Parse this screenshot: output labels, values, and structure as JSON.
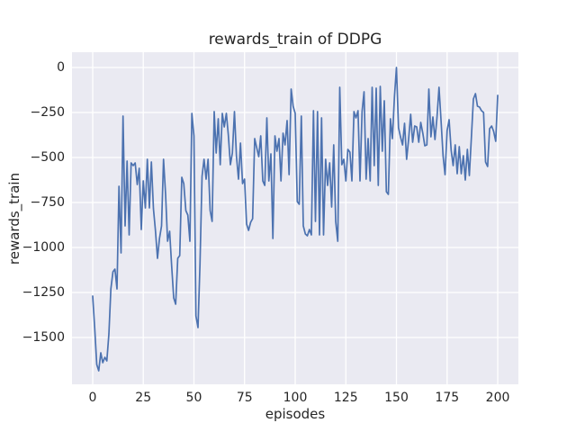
{
  "figure": {
    "title": "rewards_train of DDPG",
    "xlabel": "episodes",
    "ylabel": "rewards_train"
  },
  "axes": {
    "x_tick_labels": [
      "0",
      "25",
      "50",
      "75",
      "100",
      "125",
      "150",
      "175",
      "200"
    ],
    "y_tick_labels": [
      "0",
      "−250",
      "−500",
      "−750",
      "−1000",
      "−1250",
      "−1500"
    ]
  },
  "colors": {
    "figure_background": "#ffffff",
    "axes_background": "#eaeaf2",
    "grid": "#ffffff",
    "line": "#4c72b0",
    "text": "#262626"
  },
  "chart_data": {
    "type": "line",
    "title": "rewards_train of DDPG",
    "xlabel": "episodes",
    "ylabel": "rewards_train",
    "legend": null,
    "grid": true,
    "x_ticks": [
      0,
      25,
      50,
      75,
      100,
      125,
      150,
      175,
      200
    ],
    "y_ticks": [
      0,
      -250,
      -500,
      -750,
      -1000,
      -1250,
      -1500
    ],
    "xlim": [
      -10.2,
      210.2
    ],
    "ylim": [
      -1760,
      85
    ],
    "line_color": "#4c72b0",
    "x": [
      0,
      1,
      2,
      3,
      4,
      5,
      6,
      7,
      8,
      9,
      10,
      11,
      12,
      13,
      14,
      15,
      16,
      17,
      18,
      19,
      20,
      21,
      22,
      23,
      24,
      25,
      26,
      27,
      28,
      29,
      30,
      31,
      32,
      33,
      34,
      35,
      36,
      37,
      38,
      39,
      40,
      41,
      42,
      43,
      44,
      45,
      46,
      47,
      48,
      49,
      50,
      51,
      52,
      53,
      54,
      55,
      56,
      57,
      58,
      59,
      60,
      61,
      62,
      63,
      64,
      65,
      66,
      67,
      68,
      69,
      70,
      71,
      72,
      73,
      74,
      75,
      76,
      77,
      78,
      79,
      80,
      81,
      82,
      83,
      84,
      85,
      86,
      87,
      88,
      89,
      90,
      91,
      92,
      93,
      94,
      95,
      96,
      97,
      98,
      99,
      100,
      101,
      102,
      103,
      104,
      105,
      106,
      107,
      108,
      109,
      110,
      111,
      112,
      113,
      114,
      115,
      116,
      117,
      118,
      119,
      120,
      121,
      122,
      123,
      124,
      125,
      126,
      127,
      128,
      129,
      130,
      131,
      132,
      133,
      134,
      135,
      136,
      137,
      138,
      139,
      140,
      141,
      142,
      143,
      144,
      145,
      146,
      147,
      148,
      149,
      150,
      151,
      152,
      153,
      154,
      155,
      156,
      157,
      158,
      159,
      160,
      161,
      162,
      163,
      164,
      165,
      166,
      167,
      168,
      169,
      170,
      171,
      172,
      173,
      174,
      175,
      176,
      177,
      178,
      179,
      180,
      181,
      182,
      183,
      184,
      185,
      186,
      187,
      188,
      189,
      190,
      191,
      192,
      193,
      194,
      195,
      196,
      197,
      198,
      199,
      200
    ],
    "y": [
      -1270,
      -1445,
      -1650,
      -1685,
      -1585,
      -1640,
      -1610,
      -1630,
      -1480,
      -1230,
      -1135,
      -1120,
      -1230,
      -660,
      -1030,
      -270,
      -880,
      -520,
      -930,
      -530,
      -545,
      -530,
      -650,
      -560,
      -900,
      -630,
      -780,
      -510,
      -780,
      -525,
      -785,
      -905,
      -1060,
      -950,
      -880,
      -510,
      -705,
      -965,
      -910,
      -1100,
      -1280,
      -1315,
      -1060,
      -1045,
      -610,
      -645,
      -795,
      -820,
      -965,
      -255,
      -380,
      -1380,
      -1445,
      -1095,
      -605,
      -510,
      -620,
      -510,
      -795,
      -855,
      -245,
      -475,
      -285,
      -540,
      -255,
      -330,
      -255,
      -375,
      -540,
      -475,
      -245,
      -490,
      -620,
      -420,
      -645,
      -620,
      -870,
      -905,
      -860,
      -840,
      -395,
      -445,
      -495,
      -380,
      -630,
      -655,
      -280,
      -630,
      -480,
      -950,
      -380,
      -465,
      -395,
      -630,
      -365,
      -430,
      -295,
      -595,
      -120,
      -215,
      -255,
      -745,
      -760,
      -270,
      -880,
      -925,
      -935,
      -900,
      -930,
      -240,
      -855,
      -245,
      -930,
      -280,
      -930,
      -510,
      -655,
      -530,
      -775,
      -430,
      -855,
      -965,
      -110,
      -540,
      -510,
      -630,
      -455,
      -470,
      -630,
      -245,
      -280,
      -240,
      -630,
      -245,
      -135,
      -620,
      -395,
      -630,
      -110,
      -545,
      -115,
      -655,
      -105,
      -465,
      -185,
      -690,
      -705,
      -285,
      -395,
      -160,
      0,
      -335,
      -385,
      -430,
      -310,
      -510,
      -400,
      -260,
      -415,
      -325,
      -330,
      -415,
      -305,
      -365,
      -435,
      -430,
      -120,
      -385,
      -275,
      -400,
      -280,
      -110,
      -290,
      -490,
      -595,
      -350,
      -290,
      -460,
      -545,
      -430,
      -590,
      -440,
      -590,
      -490,
      -625,
      -455,
      -600,
      -385,
      -175,
      -145,
      -215,
      -220,
      -240,
      -250,
      -525,
      -550,
      -340,
      -325,
      -355,
      -410,
      -155
    ]
  }
}
